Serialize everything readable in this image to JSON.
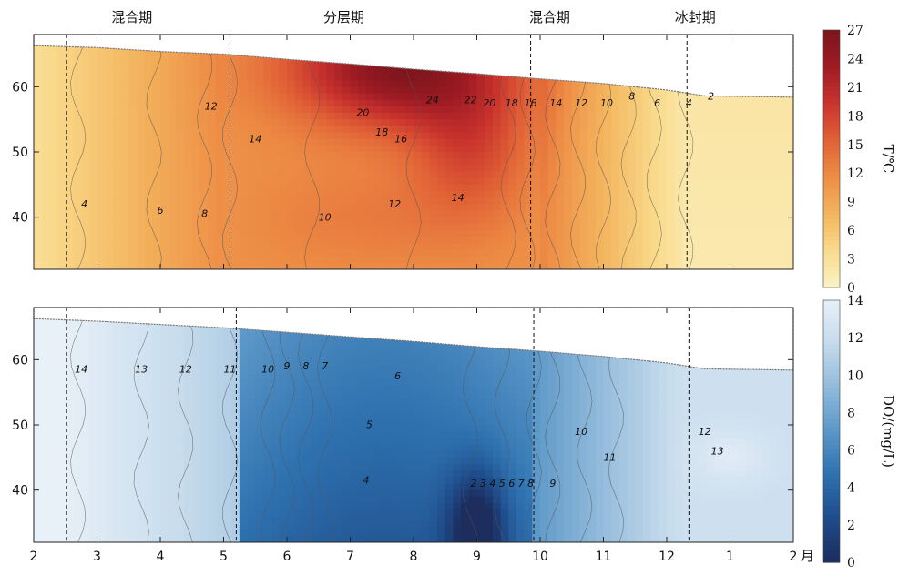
{
  "chart_data": [
    {
      "type": "heatmap",
      "variable": "T/℃",
      "colorbar_label": "T/℃",
      "colorbar_ticks": [
        0,
        3,
        6,
        9,
        12,
        15,
        18,
        21,
        24,
        27
      ],
      "colors": [
        "#fbf2c4",
        "#f9d98a",
        "#f3b35c",
        "#ed8c45",
        "#e05f35",
        "#c8322d",
        "#9e1b24",
        "#7a141c"
      ],
      "ylim": [
        32,
        68
      ],
      "xlim": [
        0,
        12
      ],
      "season_labels": [
        {
          "label": "混合期",
          "x": 1.55
        },
        {
          "label": "分层期",
          "x": 4.9
        },
        {
          "label": "混合期",
          "x": 8.15
        },
        {
          "label": "冰封期",
          "x": 10.45
        }
      ],
      "season_boundaries": [
        0.52,
        3.1,
        7.85,
        10.32
      ],
      "surface_elevation": [
        [
          0,
          66.3
        ],
        [
          1,
          66.0
        ],
        [
          2,
          65.4
        ],
        [
          3,
          65.0
        ],
        [
          4,
          64.2
        ],
        [
          5,
          63.5
        ],
        [
          6,
          62.7
        ],
        [
          7,
          62.0
        ],
        [
          8,
          61.2
        ],
        [
          9,
          60.5
        ],
        [
          10,
          59.5
        ],
        [
          10.6,
          58.6
        ],
        [
          12,
          58.4
        ]
      ],
      "contour_labels": [
        {
          "text": "4",
          "x": 0.8,
          "y": 41.5
        },
        {
          "text": "6",
          "x": 2.0,
          "y": 40.5
        },
        {
          "text": "8",
          "x": 2.7,
          "y": 40
        },
        {
          "text": "12",
          "x": 2.8,
          "y": 56.5
        },
        {
          "text": "14",
          "x": 3.5,
          "y": 51.5
        },
        {
          "text": "10",
          "x": 4.6,
          "y": 39.5
        },
        {
          "text": "12",
          "x": 5.7,
          "y": 41.5
        },
        {
          "text": "14",
          "x": 6.7,
          "y": 42.5
        },
        {
          "text": "20",
          "x": 5.2,
          "y": 55.5
        },
        {
          "text": "18",
          "x": 5.5,
          "y": 52.5
        },
        {
          "text": "16",
          "x": 5.8,
          "y": 51.5
        },
        {
          "text": "24",
          "x": 6.3,
          "y": 57.5
        },
        {
          "text": "22",
          "x": 6.9,
          "y": 57.5
        },
        {
          "text": "20",
          "x": 7.2,
          "y": 57
        },
        {
          "text": "18",
          "x": 7.55,
          "y": 57
        },
        {
          "text": "16",
          "x": 7.85,
          "y": 57
        },
        {
          "text": "14",
          "x": 8.25,
          "y": 57
        },
        {
          "text": "12",
          "x": 8.65,
          "y": 57
        },
        {
          "text": "10",
          "x": 9.05,
          "y": 57
        },
        {
          "text": "8",
          "x": 9.45,
          "y": 58
        },
        {
          "text": "6",
          "x": 9.85,
          "y": 57
        },
        {
          "text": "4",
          "x": 10.35,
          "y": 57
        },
        {
          "text": "2",
          "x": 10.7,
          "y": 58
        }
      ]
    },
    {
      "type": "heatmap",
      "variable": "DO/(mg/L)",
      "colorbar_label": "DO/(mg/L)",
      "colorbar_ticks": [
        0,
        2,
        4,
        6,
        8,
        10,
        12,
        14
      ],
      "colors": [
        "#1c2d5e",
        "#1f4d8c",
        "#2f72b0",
        "#5d98c8",
        "#93bbdb",
        "#c6dbec",
        "#e8f0f8"
      ],
      "ylim": [
        32,
        68
      ],
      "xlim": [
        0,
        12
      ],
      "season_boundaries": [
        0.52,
        3.2,
        7.9,
        10.35
      ],
      "surface_elevation": [
        [
          0,
          66.3
        ],
        [
          1,
          65.9
        ],
        [
          2,
          65.4
        ],
        [
          3,
          64.9
        ],
        [
          4,
          64.2
        ],
        [
          5,
          63.5
        ],
        [
          6,
          62.8
        ],
        [
          7,
          62.0
        ],
        [
          8,
          61.3
        ],
        [
          9,
          60.5
        ],
        [
          10,
          59.5
        ],
        [
          10.6,
          58.6
        ],
        [
          12,
          58.4
        ]
      ],
      "contour_labels": [
        {
          "text": "14",
          "x": 0.75,
          "y": 58
        },
        {
          "text": "13",
          "x": 1.7,
          "y": 58
        },
        {
          "text": "12",
          "x": 2.4,
          "y": 58
        },
        {
          "text": "11",
          "x": 3.1,
          "y": 58
        },
        {
          "text": "10",
          "x": 3.7,
          "y": 58
        },
        {
          "text": "9",
          "x": 4.0,
          "y": 58.5
        },
        {
          "text": "8",
          "x": 4.3,
          "y": 58.5
        },
        {
          "text": "7",
          "x": 4.6,
          "y": 58.5
        },
        {
          "text": "6",
          "x": 5.75,
          "y": 57
        },
        {
          "text": "5",
          "x": 5.3,
          "y": 49.5
        },
        {
          "text": "4",
          "x": 5.25,
          "y": 41
        },
        {
          "text": "2",
          "x": 6.95,
          "y": 40.5
        },
        {
          "text": "3",
          "x": 7.1,
          "y": 40.5
        },
        {
          "text": "4",
          "x": 7.25,
          "y": 40.5
        },
        {
          "text": "5",
          "x": 7.4,
          "y": 40.5
        },
        {
          "text": "6",
          "x": 7.55,
          "y": 40.5
        },
        {
          "text": "7",
          "x": 7.7,
          "y": 40.5
        },
        {
          "text": "8",
          "x": 7.85,
          "y": 40.5
        },
        {
          "text": "9",
          "x": 8.2,
          "y": 40.5
        },
        {
          "text": "10",
          "x": 8.65,
          "y": 48.5
        },
        {
          "text": "11",
          "x": 9.1,
          "y": 44.5
        },
        {
          "text": "12",
          "x": 10.6,
          "y": 48.5
        },
        {
          "text": "13",
          "x": 10.8,
          "y": 45.5
        }
      ]
    }
  ],
  "x_axis": {
    "ticks": [
      {
        "label": "2",
        "x": 0
      },
      {
        "label": "3",
        "x": 1
      },
      {
        "label": "4",
        "x": 2
      },
      {
        "label": "5",
        "x": 3
      },
      {
        "label": "6",
        "x": 4
      },
      {
        "label": "7",
        "x": 5
      },
      {
        "label": "8",
        "x": 6
      },
      {
        "label": "9",
        "x": 7
      },
      {
        "label": "10",
        "x": 8
      },
      {
        "label": "11",
        "x": 9
      },
      {
        "label": "12",
        "x": 10
      },
      {
        "label": "1",
        "x": 11
      },
      {
        "label": "2",
        "x": 12
      }
    ],
    "unit": "月"
  },
  "y_axis": {
    "ticks": [
      40,
      50,
      60
    ]
  }
}
